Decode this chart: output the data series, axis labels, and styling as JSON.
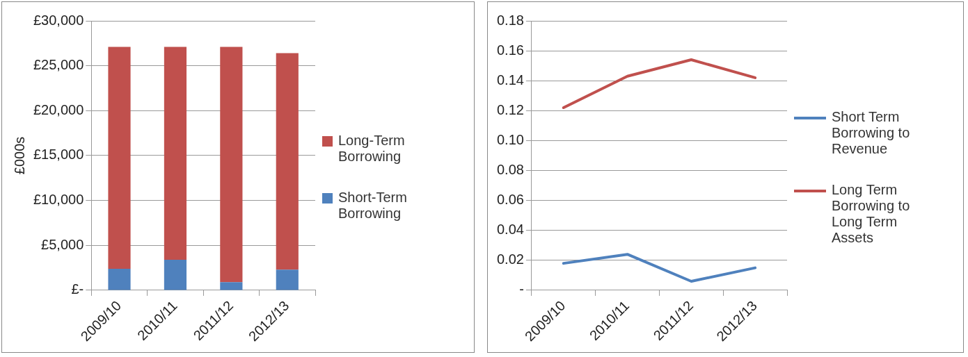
{
  "chart_data": [
    {
      "type": "bar",
      "stacked": true,
      "ylabel": "£000s",
      "categories": [
        "2009/10",
        "2010/11",
        "2011/12",
        "2012/13"
      ],
      "series": [
        {
          "name": "Short-Term Borrowing",
          "color": "#4f81bd",
          "values": [
            2400,
            3400,
            900,
            2300
          ]
        },
        {
          "name": "Long-Term Borrowing",
          "color": "#c0504d",
          "values": [
            24700,
            23700,
            26200,
            24100
          ]
        }
      ],
      "ylim": [
        0,
        30000
      ],
      "yticks": [
        {
          "value": 0,
          "label": "£-"
        },
        {
          "value": 5000,
          "label": "£5,000"
        },
        {
          "value": 10000,
          "label": "£10,000"
        },
        {
          "value": 15000,
          "label": "£15,000"
        },
        {
          "value": 20000,
          "label": "£20,000"
        },
        {
          "value": 25000,
          "label": "£25,000"
        },
        {
          "value": 30000,
          "label": "£30,000"
        }
      ],
      "grid": "y",
      "legend": "right"
    },
    {
      "type": "line",
      "categories": [
        "2009/10",
        "2010/11",
        "2011/12",
        "2012/13"
      ],
      "series": [
        {
          "name": "Short Term Borrowing to Revenue",
          "color": "#4f81bd",
          "values": [
            0.018,
            0.024,
            0.006,
            0.015
          ]
        },
        {
          "name": "Long Term Borrowing to Long Term Assets",
          "color": "#c0504d",
          "values": [
            0.122,
            0.143,
            0.154,
            0.142
          ]
        }
      ],
      "ylim": [
        0,
        0.18
      ],
      "yticks": [
        {
          "value": 0,
          "label": "-"
        },
        0.02,
        0.04,
        0.06,
        0.08,
        {
          "value": 0.1,
          "label": "0.10"
        },
        0.12,
        0.14,
        0.16,
        0.18
      ],
      "grid": "y",
      "legend": "right",
      "marker": "none",
      "line_style": "solid"
    }
  ]
}
